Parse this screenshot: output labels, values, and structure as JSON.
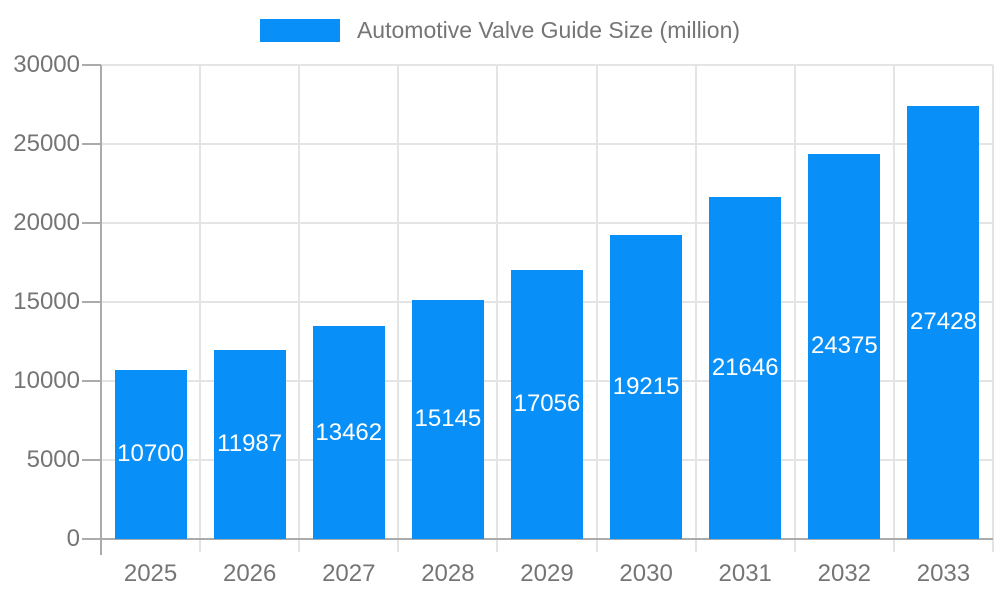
{
  "chart_data": {
    "type": "bar",
    "title": "Automotive Valve Guide Size (million)",
    "categories": [
      "2025",
      "2026",
      "2027",
      "2028",
      "2029",
      "2030",
      "2031",
      "2032",
      "2033"
    ],
    "values": [
      10700,
      11987,
      13462,
      15145,
      17056,
      19215,
      21646,
      24375,
      27428
    ],
    "xlabel": "",
    "ylabel": "",
    "ylim": [
      0,
      30000
    ],
    "yticks": [
      0,
      5000,
      10000,
      15000,
      20000,
      25000,
      30000
    ],
    "legend_position": "top",
    "grid": true,
    "colors": {
      "bar": "#0990f8",
      "value_label": "#ffffff",
      "axis_text": "#757575",
      "axis_line": "#ababab",
      "gridline": "#e4e4e4",
      "background": "#ffffff"
    }
  }
}
